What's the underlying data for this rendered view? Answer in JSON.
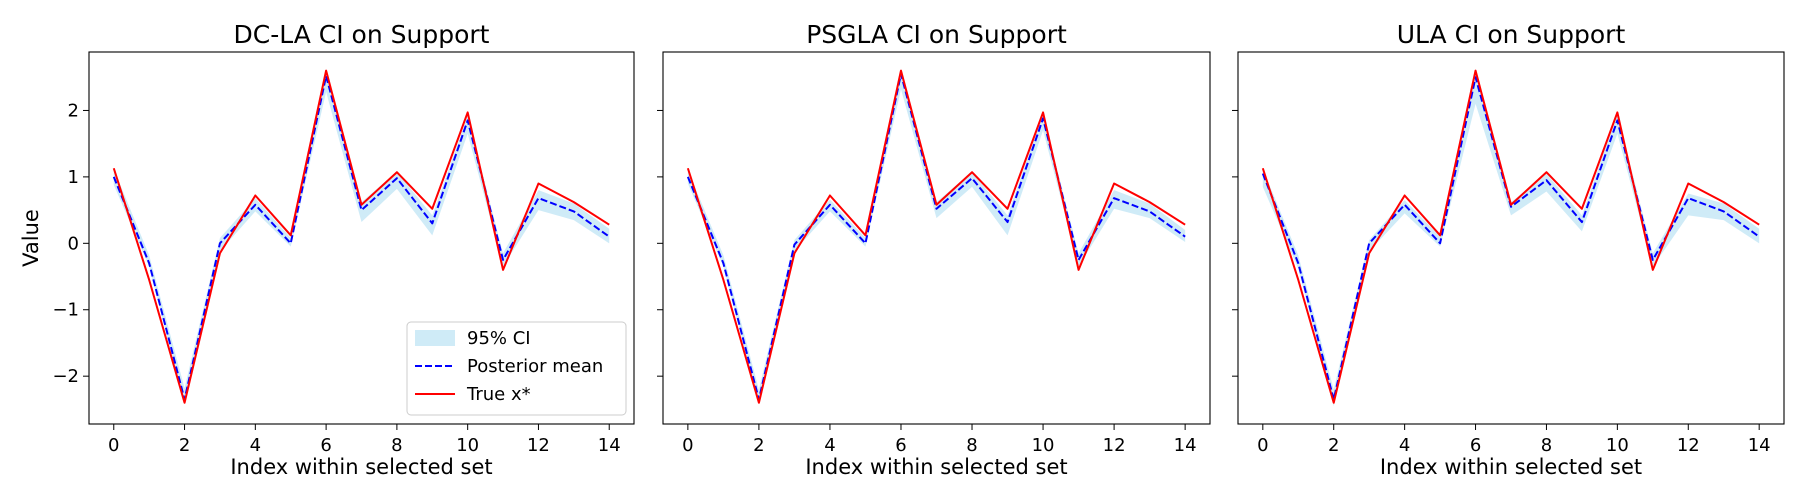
{
  "chart_data": [
    {
      "type": "line",
      "title": "DC-LA CI on Support",
      "xlabel": "Index within selected set",
      "ylabel": "Value",
      "xlim": [
        -0.7,
        14.7
      ],
      "ylim": [
        -2.72,
        2.88
      ],
      "x": [
        0,
        1,
        2,
        3,
        4,
        5,
        6,
        7,
        8,
        9,
        10,
        11,
        12,
        13,
        14
      ],
      "xticks": [
        0,
        2,
        4,
        6,
        8,
        10,
        12,
        14
      ],
      "yticks": [
        -2,
        -1,
        0,
        1,
        2
      ],
      "ytick_labels": [
        "−2",
        "−1",
        "0",
        "1",
        "2"
      ],
      "grid": false,
      "legend_position": "lower-right",
      "legend": [
        {
          "label": "95% CI",
          "kind": "band",
          "color": "#87ceeb"
        },
        {
          "label": "Posterior mean",
          "kind": "dashed",
          "color": "#0000ff"
        },
        {
          "label": "True x*",
          "kind": "solid",
          "color": "#ff0000"
        }
      ],
      "series": [
        {
          "name": "95% CI",
          "kind": "band",
          "color": "#87ceeb",
          "lower": [
            0.88,
            -0.35,
            -2.42,
            -0.12,
            0.48,
            -0.05,
            2.28,
            0.32,
            0.82,
            0.12,
            1.65,
            -0.35,
            0.5,
            0.35,
            0.0
          ],
          "upper": [
            1.12,
            -0.18,
            -2.18,
            0.08,
            0.68,
            0.08,
            2.58,
            0.62,
            1.08,
            0.42,
            1.92,
            -0.15,
            0.8,
            0.6,
            0.22
          ]
        },
        {
          "name": "Posterior mean",
          "kind": "dashed",
          "color": "#0000ff",
          "values": [
            1.0,
            -0.3,
            -2.35,
            0.0,
            0.58,
            0.0,
            2.52,
            0.5,
            0.98,
            0.3,
            1.85,
            -0.25,
            0.68,
            0.48,
            0.1
          ]
        },
        {
          "name": "True x*",
          "kind": "solid",
          "color": "#ff0000",
          "values": [
            1.13,
            -0.55,
            -2.4,
            -0.15,
            0.72,
            0.12,
            2.6,
            0.58,
            1.07,
            0.52,
            1.97,
            -0.4,
            0.9,
            0.62,
            0.28
          ]
        }
      ]
    },
    {
      "type": "line",
      "title": "PSGLA CI on Support",
      "xlabel": "Index within selected set",
      "xlim": [
        -0.7,
        14.7
      ],
      "ylim": [
        -2.72,
        2.88
      ],
      "x": [
        0,
        1,
        2,
        3,
        4,
        5,
        6,
        7,
        8,
        9,
        10,
        11,
        12,
        13,
        14
      ],
      "xticks": [
        0,
        2,
        4,
        6,
        8,
        10,
        12,
        14
      ],
      "yticks": [
        -2,
        -1,
        0,
        1,
        2
      ],
      "grid": false,
      "series": [
        {
          "name": "95% CI",
          "kind": "band",
          "color": "#87ceeb",
          "lower": [
            0.9,
            -0.35,
            -2.42,
            -0.12,
            0.48,
            -0.05,
            2.32,
            0.38,
            0.85,
            0.12,
            1.7,
            -0.35,
            0.52,
            0.38,
            0.02
          ],
          "upper": [
            1.1,
            -0.18,
            -2.2,
            0.05,
            0.66,
            0.08,
            2.6,
            0.62,
            1.08,
            0.42,
            1.95,
            -0.15,
            0.8,
            0.6,
            0.2
          ]
        },
        {
          "name": "Posterior mean",
          "kind": "dashed",
          "color": "#0000ff",
          "values": [
            1.0,
            -0.3,
            -2.35,
            -0.02,
            0.58,
            0.0,
            2.55,
            0.52,
            0.98,
            0.32,
            1.88,
            -0.25,
            0.68,
            0.48,
            0.1
          ]
        },
        {
          "name": "True x*",
          "kind": "solid",
          "color": "#ff0000",
          "values": [
            1.13,
            -0.55,
            -2.4,
            -0.15,
            0.72,
            0.12,
            2.6,
            0.58,
            1.07,
            0.52,
            1.97,
            -0.4,
            0.9,
            0.62,
            0.28
          ]
        }
      ]
    },
    {
      "type": "line",
      "title": "ULA CI on Support",
      "xlabel": "Index within selected set",
      "xlim": [
        -0.7,
        14.7
      ],
      "ylim": [
        -2.72,
        2.88
      ],
      "x": [
        0,
        1,
        2,
        3,
        4,
        5,
        6,
        7,
        8,
        9,
        10,
        11,
        12,
        13,
        14
      ],
      "xticks": [
        0,
        2,
        4,
        6,
        8,
        10,
        12,
        14
      ],
      "yticks": [
        -2,
        -1,
        0,
        1,
        2
      ],
      "grid": false,
      "series": [
        {
          "name": "95% CI",
          "kind": "band",
          "color": "#87ceeb",
          "lower": [
            0.85,
            -0.38,
            -2.45,
            -0.12,
            0.45,
            -0.05,
            2.1,
            0.42,
            0.78,
            0.18,
            1.65,
            -0.35,
            0.42,
            0.35,
            0.0
          ],
          "upper": [
            1.12,
            -0.18,
            -2.2,
            0.05,
            0.65,
            0.1,
            2.58,
            0.62,
            1.05,
            0.42,
            1.95,
            -0.15,
            0.75,
            0.6,
            0.22
          ]
        },
        {
          "name": "Posterior mean",
          "kind": "dashed",
          "color": "#0000ff",
          "values": [
            1.05,
            -0.3,
            -2.35,
            0.0,
            0.58,
            0.0,
            2.5,
            0.55,
            0.95,
            0.32,
            1.85,
            -0.25,
            0.68,
            0.48,
            0.1
          ]
        },
        {
          "name": "True x*",
          "kind": "solid",
          "color": "#ff0000",
          "values": [
            1.13,
            -0.55,
            -2.4,
            -0.15,
            0.72,
            0.12,
            2.6,
            0.58,
            1.07,
            0.52,
            1.97,
            -0.4,
            0.9,
            0.62,
            0.28
          ]
        }
      ]
    }
  ]
}
